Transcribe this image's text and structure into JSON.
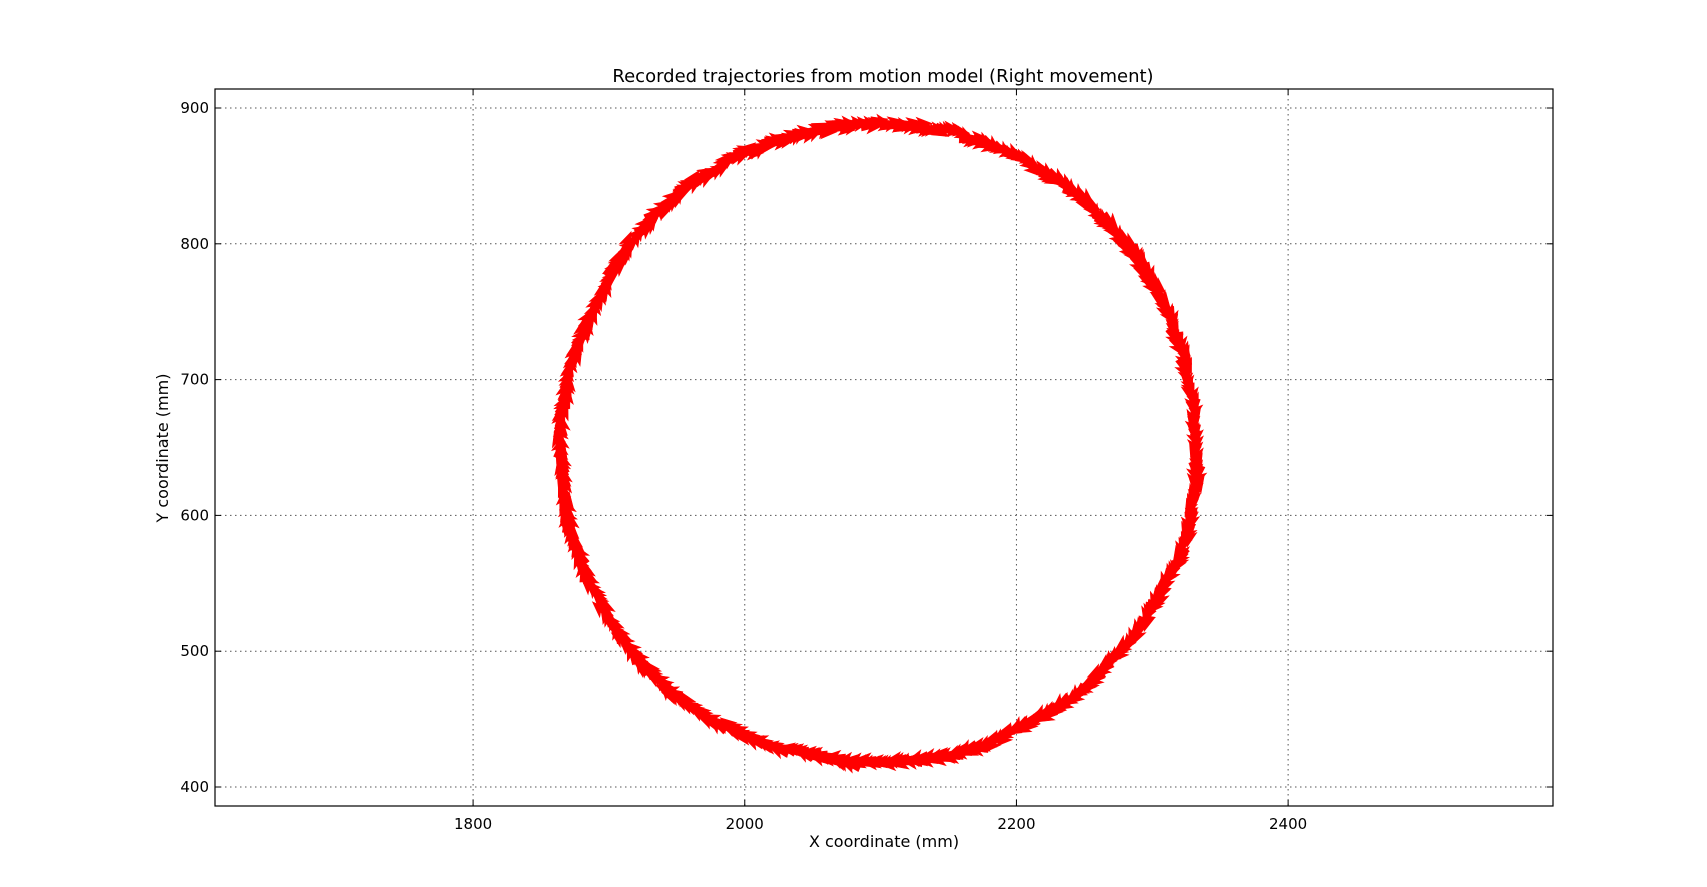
{
  "chart_data": {
    "type": "scatter",
    "title": "Recorded trajectories from motion model (Right movement)",
    "xlabel": "X coordinate (mm)",
    "ylabel": "Y coordinate (mm)",
    "xlim": [
      1610,
      2595
    ],
    "ylim": [
      386,
      914
    ],
    "xticks": [
      1800,
      2000,
      2200,
      2400
    ],
    "yticks": [
      400,
      500,
      600,
      700,
      800,
      900
    ],
    "grid": true,
    "grid_style": "dotted",
    "marker": "arrow",
    "series": [
      {
        "color": "#ff0000",
        "points": [
          [
            2333,
            655
          ],
          [
            2332,
            620
          ],
          [
            2327,
            590
          ],
          [
            2318,
            565
          ],
          [
            2305,
            540
          ],
          [
            2290,
            515
          ],
          [
            2273,
            495
          ],
          [
            2252,
            475
          ],
          [
            2230,
            458
          ],
          [
            2205,
            445
          ],
          [
            2180,
            432
          ],
          [
            2155,
            424
          ],
          [
            2130,
            420
          ],
          [
            2105,
            418
          ],
          [
            2080,
            418
          ],
          [
            2055,
            422
          ],
          [
            2030,
            427
          ],
          [
            2005,
            435
          ],
          [
            1985,
            445
          ],
          [
            1962,
            457
          ],
          [
            1942,
            472
          ],
          [
            1925,
            490
          ],
          [
            1910,
            510
          ],
          [
            1897,
            530
          ],
          [
            1885,
            550
          ],
          [
            1876,
            575
          ],
          [
            1869,
            600
          ],
          [
            1866,
            625
          ],
          [
            1864,
            650
          ],
          [
            1865,
            675
          ],
          [
            1870,
            700
          ],
          [
            1877,
            725
          ],
          [
            1888,
            750
          ],
          [
            1900,
            775
          ],
          [
            1915,
            800
          ],
          [
            1933,
            820
          ],
          [
            1955,
            840
          ],
          [
            1977,
            855
          ],
          [
            2000,
            867
          ],
          [
            2025,
            876
          ],
          [
            2050,
            883
          ],
          [
            2075,
            887
          ],
          [
            2100,
            888
          ],
          [
            2125,
            887
          ],
          [
            2150,
            883
          ],
          [
            2175,
            875
          ],
          [
            2200,
            864
          ],
          [
            2225,
            850
          ],
          [
            2248,
            835
          ],
          [
            2268,
            815
          ],
          [
            2285,
            795
          ],
          [
            2300,
            772
          ],
          [
            2313,
            748
          ],
          [
            2322,
            720
          ],
          [
            2329,
            690
          ]
        ]
      }
    ]
  }
}
